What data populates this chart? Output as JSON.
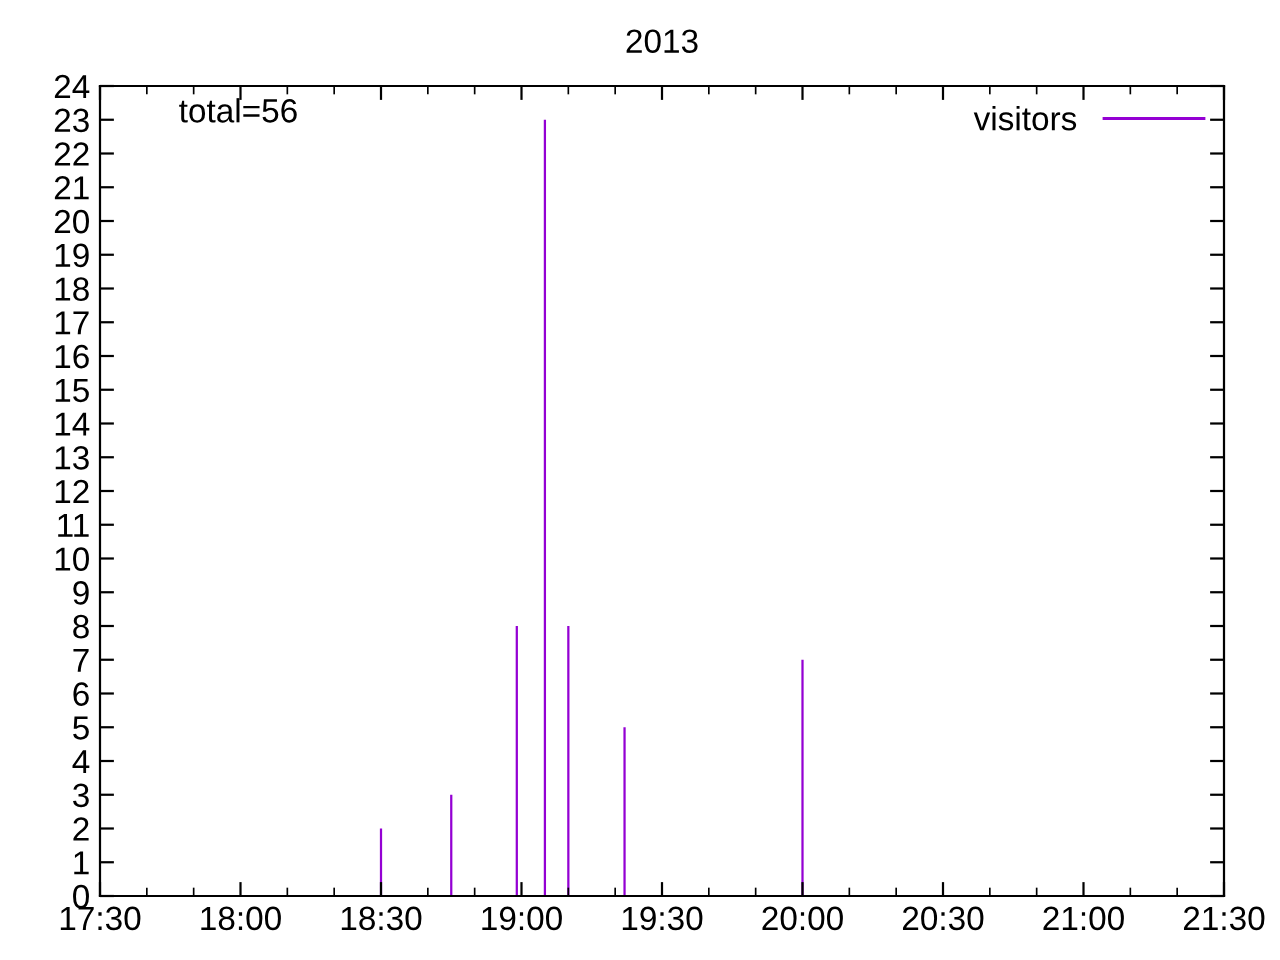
{
  "chart_data": {
    "type": "bar",
    "title": "2013",
    "x": [
      18.5,
      18.75,
      18.9833,
      19.0833,
      19.1667,
      19.3667,
      20.0
    ],
    "series": [
      {
        "name": "visitors",
        "color": "#9400d3",
        "values": [
          2,
          3,
          8,
          23,
          8,
          5,
          7
        ]
      }
    ],
    "xlim": [
      17.5,
      21.5
    ],
    "xticks": [
      {
        "value": 17.5,
        "label": "17:30"
      },
      {
        "value": 18,
        "label": "18:00"
      },
      {
        "value": 18.5,
        "label": "18:30"
      },
      {
        "value": 19,
        "label": "19:00"
      },
      {
        "value": 19.5,
        "label": "19:30"
      },
      {
        "value": 20,
        "label": "20:00"
      },
      {
        "value": 20.5,
        "label": "20:30"
      },
      {
        "value": 21,
        "label": "21:00"
      },
      {
        "value": 21.5,
        "label": "21:30"
      }
    ],
    "ylim": [
      0,
      24
    ],
    "yticks": [
      0,
      1,
      2,
      3,
      4,
      5,
      6,
      7,
      8,
      9,
      10,
      11,
      12,
      13,
      14,
      15,
      16,
      17,
      18,
      19,
      20,
      21,
      22,
      23,
      24
    ],
    "annotations": [
      "total=56"
    ],
    "legend": "top right",
    "grid": false
  }
}
